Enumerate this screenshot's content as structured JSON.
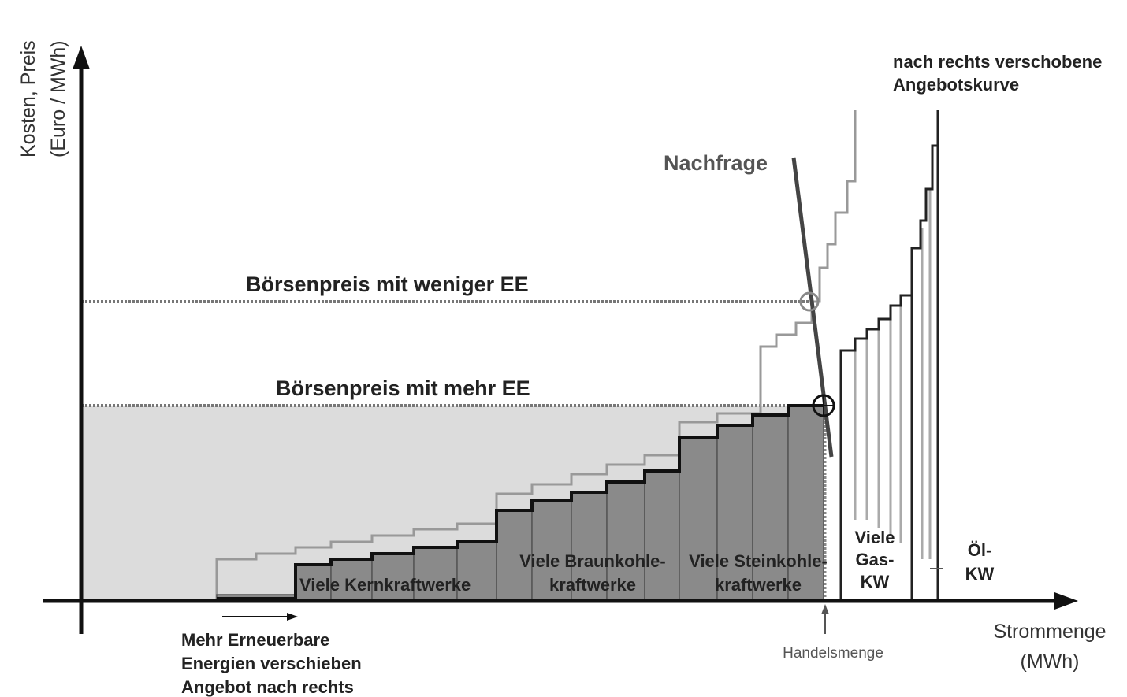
{
  "axes": {
    "y_label": [
      "Kosten, Preis",
      "(Euro / MWh)"
    ],
    "x_label": [
      "Strommenge",
      "(MWh)"
    ]
  },
  "labels": {
    "shifted_curve": [
      "nach rechts verschobene",
      "Angebotskurve"
    ],
    "demand": "Nachfrage",
    "price_less_ee": "Börsenpreis mit weniger EE",
    "price_more_ee": "Börsenpreis mit mehr EE",
    "nuclear": "Viele Kernkraftwerke",
    "lignite": [
      "Viele Braunkohle-",
      "kraftwerke"
    ],
    "coal": [
      "Viele Steinkohle-",
      "kraftwerke"
    ],
    "gas": [
      "Viele",
      "Gas-",
      "KW"
    ],
    "oil": [
      "Öl-",
      "KW"
    ],
    "renewables": [
      "Mehr Erneuerbare",
      "Energien verschieben",
      "Angebot nach rechts"
    ],
    "trade_volume": "Handelsmenge"
  }
}
